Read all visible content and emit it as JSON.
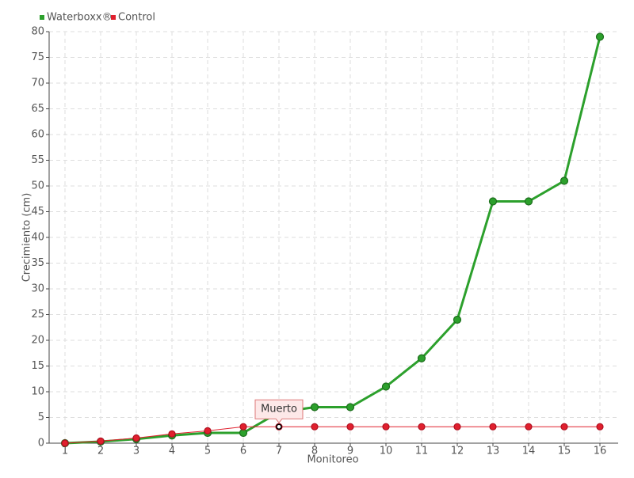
{
  "chart_data": {
    "type": "line",
    "xlabel": "Monitoreo",
    "ylabel": "Crecimiento (cm)",
    "categories": [
      "1",
      "2",
      "3",
      "4",
      "5",
      "6",
      "7",
      "8",
      "9",
      "10",
      "11",
      "12",
      "13",
      "14",
      "15",
      "16"
    ],
    "series": [
      {
        "name": "Waterboxx®",
        "color": "#2ca02c",
        "values": [
          0,
          0.3,
          0.8,
          1.5,
          2,
          2,
          6,
          7,
          7,
          11,
          16.5,
          24,
          47,
          47,
          51,
          79
        ]
      },
      {
        "name": "Control",
        "color": "#e0202e",
        "values": [
          0,
          0.4,
          1,
          1.8,
          2.4,
          3.2,
          3.2,
          3.2,
          3.2,
          3.2,
          3.2,
          3.2,
          3.2,
          3.2,
          3.2,
          3.2
        ]
      }
    ],
    "annotation": "Muerto",
    "ylim": [
      0,
      80
    ],
    "yticks": [
      0,
      5,
      10,
      15,
      20,
      25,
      30,
      35,
      40,
      45,
      50,
      55,
      60,
      65,
      70,
      75,
      80
    ],
    "grid": true,
    "legend": "top-left"
  }
}
